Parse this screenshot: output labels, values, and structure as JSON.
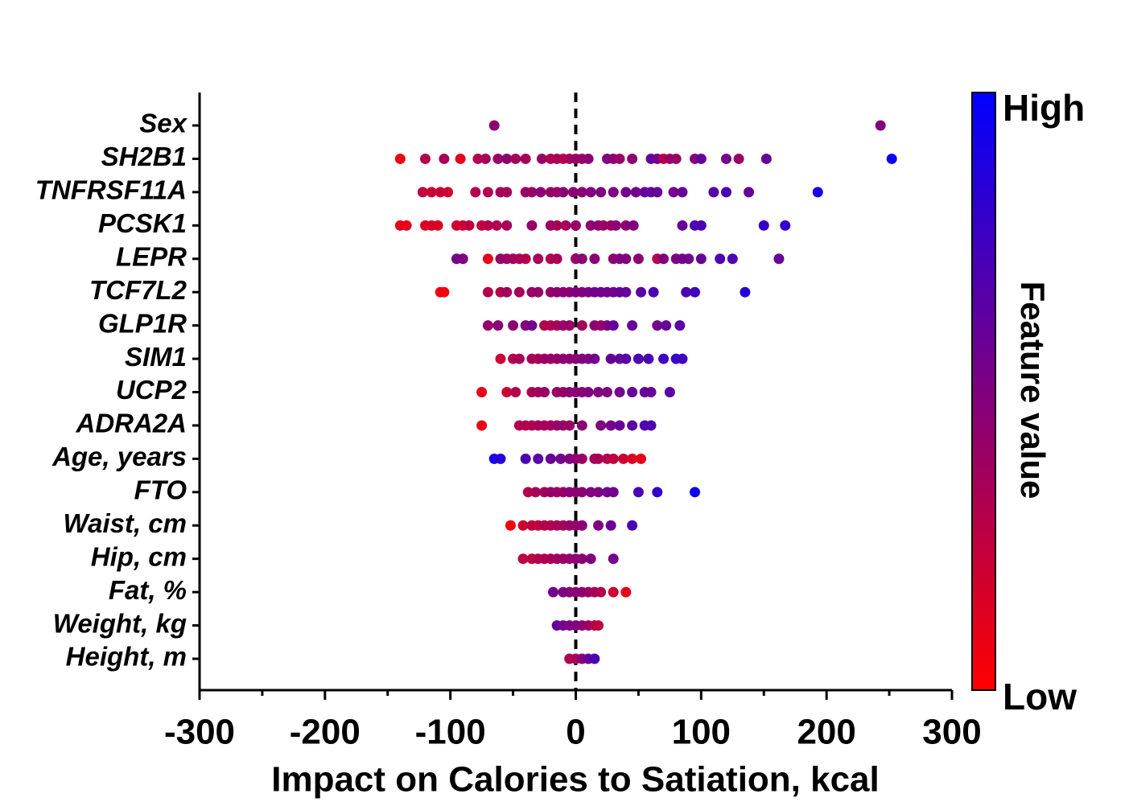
{
  "chart_data": {
    "type": "beeswarm",
    "xlabel": "Impact on Calories to Satiation, kcal",
    "xlim": [
      -300,
      300
    ],
    "xticks": [
      -300,
      -200,
      -100,
      0,
      100,
      200,
      300
    ],
    "xminorticks": [
      -250,
      -150,
      -50,
      50,
      150,
      250
    ],
    "reference_line": 0,
    "colorbar": {
      "title": "Feature value",
      "high": "High",
      "low": "Low",
      "colors": [
        "#ff0000",
        "#0000ff"
      ]
    },
    "series": [
      {
        "name": "Sex",
        "values": [
          -65,
          243
        ],
        "feature_values": [
          0.45,
          0.5
        ]
      },
      {
        "name": "SH2B1",
        "values": [
          -140,
          -120,
          -105,
          -92,
          -78,
          -72,
          -62,
          -55,
          -48,
          -40,
          -27,
          -20,
          -15,
          -10,
          -5,
          0,
          5,
          10,
          25,
          30,
          35,
          45,
          60,
          65,
          70,
          75,
          80,
          95,
          100,
          120,
          130,
          152,
          252
        ],
        "feature_values": [
          0.05,
          0.3,
          0.35,
          0.1,
          0.3,
          0.35,
          0.4,
          0.45,
          0.35,
          0.35,
          0.4,
          0.3,
          0.35,
          0.3,
          0.35,
          0.4,
          0.4,
          0.45,
          0.5,
          0.45,
          0.4,
          0.45,
          0.6,
          0.55,
          0.3,
          0.4,
          0.4,
          0.5,
          0.6,
          0.55,
          0.4,
          0.6,
          0.95
        ]
      },
      {
        "name": "TNFRSF11A",
        "values": [
          -122,
          -115,
          -108,
          -102,
          -80,
          -70,
          -60,
          -55,
          -40,
          -35,
          -28,
          -20,
          -15,
          -10,
          -2,
          5,
          12,
          20,
          30,
          40,
          48,
          55,
          60,
          65,
          78,
          85,
          110,
          120,
          138,
          193
        ],
        "feature_values": [
          0.25,
          0.2,
          0.2,
          0.2,
          0.3,
          0.3,
          0.35,
          0.35,
          0.4,
          0.4,
          0.45,
          0.4,
          0.4,
          0.45,
          0.45,
          0.45,
          0.5,
          0.5,
          0.5,
          0.55,
          0.55,
          0.6,
          0.6,
          0.6,
          0.55,
          0.6,
          0.65,
          0.7,
          0.6,
          0.9
        ]
      },
      {
        "name": "PCSK1",
        "values": [
          -140,
          -135,
          -120,
          -115,
          -110,
          -95,
          -90,
          -85,
          -75,
          -70,
          -63,
          -55,
          -35,
          -20,
          -15,
          -8,
          0,
          12,
          18,
          22,
          28,
          32,
          40,
          46,
          85,
          95,
          100,
          150,
          167
        ],
        "feature_values": [
          0.1,
          0.1,
          0.15,
          0.15,
          0.15,
          0.2,
          0.2,
          0.25,
          0.25,
          0.3,
          0.3,
          0.35,
          0.4,
          0.4,
          0.35,
          0.35,
          0.4,
          0.45,
          0.45,
          0.4,
          0.4,
          0.45,
          0.45,
          0.5,
          0.6,
          0.7,
          0.7,
          0.8,
          0.8
        ]
      },
      {
        "name": "LEPR",
        "values": [
          -95,
          -90,
          -70,
          -60,
          -55,
          -50,
          -45,
          -40,
          -30,
          -20,
          -15,
          0,
          5,
          15,
          30,
          35,
          40,
          50,
          65,
          70,
          80,
          85,
          90,
          100,
          115,
          125,
          162
        ],
        "feature_values": [
          0.55,
          0.5,
          0.1,
          0.4,
          0.4,
          0.35,
          0.35,
          0.3,
          0.35,
          0.3,
          0.35,
          0.4,
          0.45,
          0.45,
          0.45,
          0.5,
          0.5,
          0.45,
          0.3,
          0.5,
          0.5,
          0.55,
          0.55,
          0.6,
          0.7,
          0.7,
          0.6
        ]
      },
      {
        "name": "TCF7L2",
        "values": [
          -108,
          -105,
          -70,
          -60,
          -55,
          -45,
          -35,
          -30,
          -20,
          -15,
          -10,
          -5,
          0,
          5,
          10,
          15,
          20,
          25,
          30,
          35,
          40,
          52,
          62,
          88,
          95,
          135
        ],
        "feature_values": [
          0.05,
          0.05,
          0.3,
          0.3,
          0.35,
          0.35,
          0.4,
          0.4,
          0.4,
          0.45,
          0.45,
          0.45,
          0.5,
          0.5,
          0.5,
          0.55,
          0.55,
          0.55,
          0.55,
          0.6,
          0.6,
          0.65,
          0.7,
          0.7,
          0.75,
          0.85
        ]
      },
      {
        "name": "GLP1R",
        "values": [
          -70,
          -62,
          -50,
          -40,
          -35,
          -25,
          -20,
          -15,
          -10,
          -5,
          5,
          15,
          20,
          25,
          30,
          45,
          65,
          72,
          83
        ],
        "feature_values": [
          0.4,
          0.45,
          0.45,
          0.5,
          0.55,
          0.3,
          0.3,
          0.35,
          0.4,
          0.4,
          0.35,
          0.45,
          0.4,
          0.5,
          0.6,
          0.6,
          0.55,
          0.6,
          0.65
        ]
      },
      {
        "name": "SIM1",
        "values": [
          -60,
          -50,
          -45,
          -35,
          -30,
          -25,
          -20,
          -15,
          -10,
          -5,
          0,
          5,
          10,
          15,
          28,
          35,
          40,
          50,
          58,
          70,
          80,
          85
        ],
        "feature_values": [
          0.2,
          0.3,
          0.35,
          0.35,
          0.35,
          0.4,
          0.4,
          0.4,
          0.45,
          0.45,
          0.45,
          0.5,
          0.5,
          0.55,
          0.6,
          0.6,
          0.65,
          0.7,
          0.7,
          0.75,
          0.8,
          0.75
        ]
      },
      {
        "name": "UCP2",
        "values": [
          -75,
          -55,
          -48,
          -35,
          -30,
          -25,
          -15,
          -10,
          -5,
          0,
          5,
          10,
          18,
          25,
          35,
          45,
          55,
          60,
          75
        ],
        "feature_values": [
          0.1,
          0.2,
          0.3,
          0.35,
          0.35,
          0.4,
          0.4,
          0.4,
          0.45,
          0.45,
          0.45,
          0.5,
          0.5,
          0.5,
          0.55,
          0.6,
          0.6,
          0.6,
          0.65
        ]
      },
      {
        "name": "ADRA2A",
        "values": [
          -75,
          -45,
          -40,
          -35,
          -30,
          -25,
          -20,
          -15,
          -10,
          -5,
          5,
          20,
          28,
          35,
          45,
          55,
          60
        ],
        "feature_values": [
          0.1,
          0.3,
          0.3,
          0.3,
          0.35,
          0.35,
          0.35,
          0.4,
          0.4,
          0.4,
          0.45,
          0.5,
          0.55,
          0.6,
          0.65,
          0.7,
          0.7
        ]
      },
      {
        "name": "Age, years",
        "values": [
          -65,
          -60,
          -40,
          -30,
          -20,
          -12,
          -5,
          0,
          5,
          15,
          18,
          25,
          30,
          38,
          45,
          52
        ],
        "feature_values": [
          0.9,
          0.85,
          0.7,
          0.65,
          0.6,
          0.55,
          0.5,
          0.45,
          0.4,
          0.35,
          0.35,
          0.3,
          0.25,
          0.2,
          0.15,
          0.1
        ]
      },
      {
        "name": "FTO",
        "values": [
          -38,
          -32,
          -25,
          -20,
          -15,
          -10,
          -5,
          0,
          5,
          12,
          18,
          25,
          30,
          50,
          65,
          95
        ],
        "feature_values": [
          0.3,
          0.35,
          0.35,
          0.4,
          0.4,
          0.4,
          0.45,
          0.45,
          0.45,
          0.5,
          0.5,
          0.55,
          0.55,
          0.7,
          0.8,
          0.95
        ]
      },
      {
        "name": "Waist, cm",
        "values": [
          -52,
          -42,
          -35,
          -30,
          -25,
          -20,
          -15,
          -10,
          -5,
          0,
          5,
          18,
          28,
          45
        ],
        "feature_values": [
          0.05,
          0.2,
          0.25,
          0.25,
          0.3,
          0.3,
          0.35,
          0.35,
          0.4,
          0.4,
          0.45,
          0.5,
          0.6,
          0.7
        ]
      },
      {
        "name": "Hip, cm",
        "values": [
          -42,
          -35,
          -30,
          -25,
          -20,
          -15,
          -10,
          -5,
          0,
          5,
          12,
          30
        ],
        "feature_values": [
          0.25,
          0.25,
          0.3,
          0.3,
          0.35,
          0.35,
          0.4,
          0.4,
          0.45,
          0.45,
          0.5,
          0.55
        ]
      },
      {
        "name": "Fat, %",
        "values": [
          -18,
          -10,
          -5,
          0,
          5,
          10,
          15,
          20,
          30,
          40
        ],
        "feature_values": [
          0.55,
          0.5,
          0.5,
          0.45,
          0.45,
          0.4,
          0.35,
          0.3,
          0.2,
          0.1
        ]
      },
      {
        "name": "Weight, kg",
        "values": [
          -15,
          -10,
          -5,
          0,
          5,
          10,
          15,
          18
        ],
        "feature_values": [
          0.6,
          0.55,
          0.5,
          0.5,
          0.45,
          0.4,
          0.3,
          0.25
        ]
      },
      {
        "name": "Height, m",
        "values": [
          -5,
          0,
          5,
          10,
          15
        ],
        "feature_values": [
          0.3,
          0.35,
          0.45,
          0.6,
          0.7
        ]
      }
    ]
  }
}
